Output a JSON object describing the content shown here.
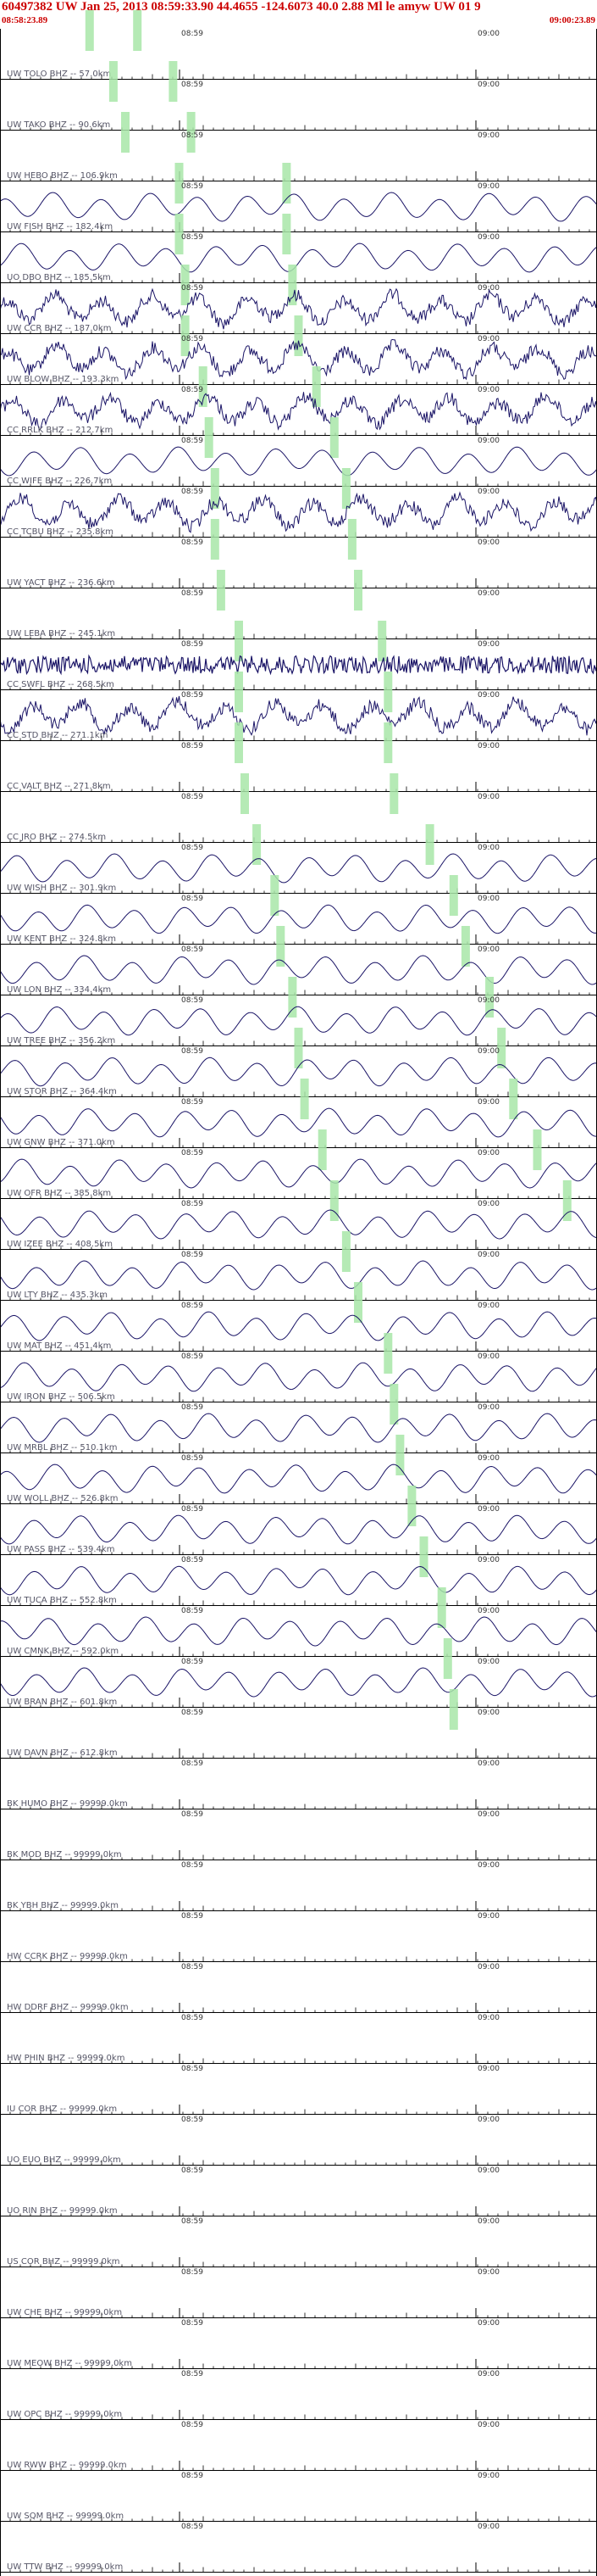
{
  "header": {
    "title": "60497382 UW Jan 25, 2013 08:59:33.90   44.4655  -124.6073 40.0 2.88 Ml le amyw UW 01   9",
    "start_time": "08:58:23.89",
    "end_time": "09:00:23.89"
  },
  "time_labels": [
    "08:59",
    "09:00"
  ],
  "colors": {
    "header_text": "#cc0000",
    "trace": "#1a1466",
    "pick": "#a8e6a8",
    "axis": "#000000"
  },
  "channels": [
    {
      "label": "UW TOLO BHZ -- 57.0km",
      "trace": "none",
      "picks": [
        0.15,
        0.23
      ]
    },
    {
      "label": "UW TAKO BHZ -- 90.6km",
      "trace": "none",
      "picks": [
        0.19,
        0.29
      ]
    },
    {
      "label": "UW HEBO BHZ -- 106.9km",
      "trace": "none",
      "picks": [
        0.21,
        0.32
      ]
    },
    {
      "label": "UW FISH BHZ -- 182.4km",
      "trace": "lowfreq",
      "picks": [
        0.3,
        0.48
      ]
    },
    {
      "label": "UO DBO BHZ -- 185.5km",
      "trace": "lowfreq",
      "picks": [
        0.3,
        0.48
      ]
    },
    {
      "label": "UW CCR BHZ -- 187.0km",
      "trace": "mixed",
      "picks": [
        0.31,
        0.49
      ]
    },
    {
      "label": "UW BLOW BHZ -- 193.3km",
      "trace": "mixed",
      "picks": [
        0.31,
        0.5
      ]
    },
    {
      "label": "CC RRLK BHZ -- 212.7km",
      "trace": "mixed",
      "picks": [
        0.34,
        0.53
      ]
    },
    {
      "label": "CC WIFE BHZ -- 226.7km",
      "trace": "lowfreq",
      "picks": [
        0.35,
        0.56
      ]
    },
    {
      "label": "CC TCBU BHZ -- 235.8km",
      "trace": "mixed",
      "picks": [
        0.36,
        0.58
      ]
    },
    {
      "label": "UW YACT BHZ -- 236.6km",
      "trace": "none",
      "picks": [
        0.36,
        0.59
      ]
    },
    {
      "label": "UW LEBA BHZ -- 245.1km",
      "trace": "none",
      "picks": [
        0.37,
        0.6
      ]
    },
    {
      "label": "CC SWFL BHZ -- 268.5km",
      "trace": "noise",
      "picks": [
        0.4,
        0.64
      ]
    },
    {
      "label": "CC STD BHZ -- 271.1km",
      "trace": "mixed",
      "picks": [
        0.4,
        0.65
      ]
    },
    {
      "label": "CC VALT BHZ -- 271.8km",
      "trace": "none",
      "picks": [
        0.4,
        0.65
      ]
    },
    {
      "label": "CC JRO BHZ -- 274.5km",
      "trace": "none",
      "picks": [
        0.41,
        0.66
      ]
    },
    {
      "label": "UW WISH BHZ -- 301.9km",
      "trace": "lowfreq",
      "picks": [
        0.43,
        0.72
      ]
    },
    {
      "label": "UW KENT BHZ -- 324.8km",
      "trace": "lowfreq",
      "picks": [
        0.46,
        0.76
      ]
    },
    {
      "label": "UW LON BHZ -- 334.4km",
      "trace": "lowfreq",
      "picks": [
        0.47,
        0.78
      ]
    },
    {
      "label": "UW TREE BHZ -- 356.2km",
      "trace": "lowfreq",
      "picks": [
        0.49,
        0.82
      ]
    },
    {
      "label": "UW STOR BHZ -- 364.4km",
      "trace": "lowfreq",
      "picks": [
        0.5,
        0.84
      ]
    },
    {
      "label": "UW GNW BHZ -- 371.0km",
      "trace": "lowfreq",
      "picks": [
        0.51,
        0.86
      ]
    },
    {
      "label": "UW OFR BHZ -- 385.8km",
      "trace": "lowfreq",
      "picks": [
        0.54,
        0.9
      ]
    },
    {
      "label": "UW IZEE BHZ -- 408.5km",
      "trace": "lowfreq",
      "picks": [
        0.56,
        0.95
      ]
    },
    {
      "label": "UW LTY BHZ -- 435.3km",
      "trace": "lowfreq",
      "picks": [
        0.58,
        null
      ]
    },
    {
      "label": "UW MAT BHZ -- 451.4km",
      "trace": "lowfreq",
      "picks": [
        0.6,
        null
      ]
    },
    {
      "label": "UW IRON BHZ -- 506.5km",
      "trace": "lowfreq",
      "picks": [
        0.65,
        null
      ]
    },
    {
      "label": "UW MRBL BHZ -- 510.1km",
      "trace": "lowfreq",
      "picks": [
        0.66,
        null
      ]
    },
    {
      "label": "UW WOLL BHZ -- 526.8km",
      "trace": "lowfreq",
      "picks": [
        0.67,
        null
      ]
    },
    {
      "label": "UW PASS BHZ -- 539.4km",
      "trace": "lowfreq",
      "picks": [
        0.69,
        null
      ]
    },
    {
      "label": "UW TUCA BHZ -- 552.8km",
      "trace": "lowfreq",
      "picks": [
        0.71,
        null
      ]
    },
    {
      "label": "UW CMNK BHZ -- 592.0km",
      "trace": "lowfreq",
      "picks": [
        0.74,
        null
      ]
    },
    {
      "label": "UW BRAN BHZ -- 601.8km",
      "trace": "lowfreq",
      "picks": [
        0.75,
        null
      ]
    },
    {
      "label": "UW DAVN BHZ -- 612.8km",
      "trace": "none",
      "picks": [
        0.76,
        null
      ]
    },
    {
      "label": "BK HUMO BHZ -- 99999.0km",
      "trace": "none",
      "picks": []
    },
    {
      "label": "BK MOD BHZ -- 99999.0km",
      "trace": "none",
      "picks": []
    },
    {
      "label": "BK YBH BHZ -- 99999.0km",
      "trace": "none",
      "picks": []
    },
    {
      "label": "HW CCRK BHZ -- 99999.0km",
      "trace": "none",
      "picks": []
    },
    {
      "label": "HW DDRF BHZ -- 99999.0km",
      "trace": "none",
      "picks": []
    },
    {
      "label": "HW PHIN BHZ -- 99999.0km",
      "trace": "none",
      "picks": []
    },
    {
      "label": "IU COR BHZ -- 99999.0km",
      "trace": "none",
      "picks": []
    },
    {
      "label": "UO EUO BHZ -- 99999.0km",
      "trace": "none",
      "picks": []
    },
    {
      "label": "UO RIN BHZ -- 99999.0km",
      "trace": "none",
      "picks": []
    },
    {
      "label": "US COR BHZ -- 99999.0km",
      "trace": "none",
      "picks": []
    },
    {
      "label": "UW CHE BHZ -- 99999.0km",
      "trace": "none",
      "picks": []
    },
    {
      "label": "UW MEOW BHZ -- 99999.0km",
      "trace": "none",
      "picks": []
    },
    {
      "label": "UW OPC BHZ -- 99999.0km",
      "trace": "none",
      "picks": []
    },
    {
      "label": "UW RWW BHZ -- 99999.0km",
      "trace": "none",
      "picks": []
    },
    {
      "label": "UW SQM BHZ -- 99999.0km",
      "trace": "none",
      "picks": []
    },
    {
      "label": "UW TTW BHZ -- 99999.0km",
      "trace": "none",
      "picks": []
    }
  ]
}
